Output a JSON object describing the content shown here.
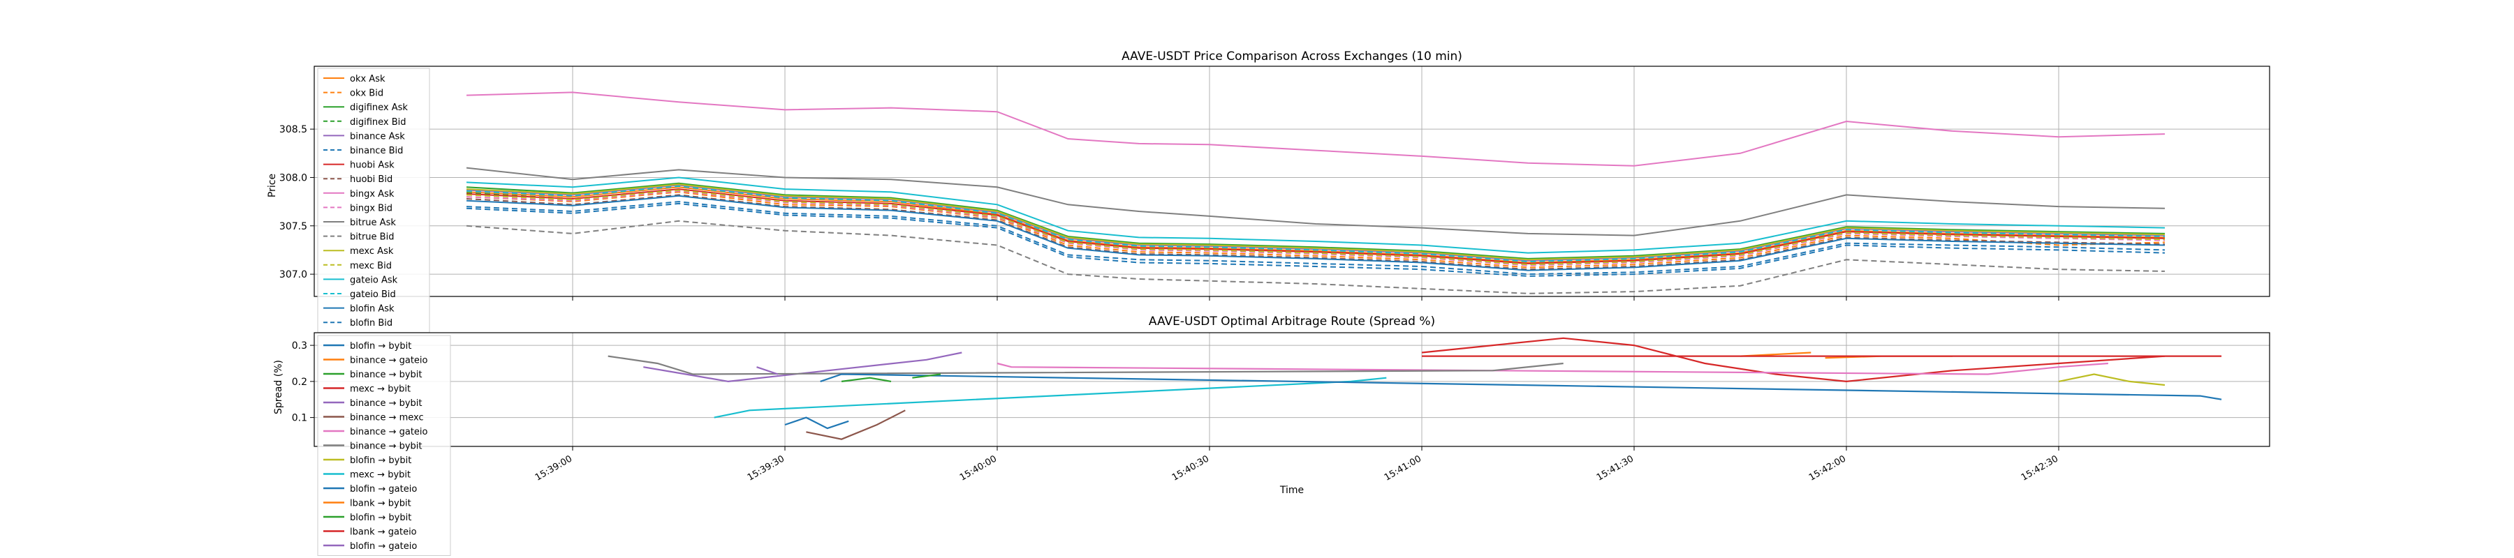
{
  "chart_data": [
    {
      "type": "line",
      "title": "AAVE-USDT Price Comparison Across Exchanges (10 min)",
      "ylabel": "Price",
      "xlabel": "",
      "ylim": [
        306.77,
        309.15
      ],
      "grid": true,
      "legend_placement": "upper-left",
      "x_ticks": [
        "15:39:00",
        "15:39:30",
        "15:40:00",
        "15:40:30",
        "15:41:00",
        "15:41:30",
        "15:42:00",
        "15:42:30"
      ],
      "y_ticks": [
        307.0,
        307.5,
        308.0,
        308.5
      ],
      "x_keys": [
        "15:38:45",
        "15:39:00",
        "15:39:15",
        "15:39:30",
        "15:39:45",
        "15:40:00",
        "15:40:10",
        "15:40:20",
        "15:40:30",
        "15:40:45",
        "15:41:00",
        "15:41:15",
        "15:41:30",
        "15:41:45",
        "15:42:00",
        "15:42:15",
        "15:42:30",
        "15:42:45"
      ],
      "series": [
        {
          "name": "okx Ask",
          "color": "#ff7f0e",
          "dash": "solid",
          "values": [
            307.85,
            307.8,
            307.9,
            307.78,
            307.75,
            307.62,
            307.35,
            307.28,
            307.27,
            307.24,
            307.2,
            307.12,
            307.15,
            307.22,
            307.45,
            307.42,
            307.4,
            307.38
          ]
        },
        {
          "name": "okx Bid",
          "color": "#ff7f0e",
          "dash": "dashed",
          "values": [
            307.8,
            307.75,
            307.85,
            307.72,
            307.7,
            307.58,
            307.3,
            307.23,
            307.22,
            307.19,
            307.15,
            307.07,
            307.1,
            307.17,
            307.4,
            307.37,
            307.3,
            307.33
          ]
        },
        {
          "name": "digifinex Ask",
          "color": "#2ca02c",
          "dash": "solid",
          "values": [
            307.9,
            307.84,
            307.94,
            307.82,
            307.79,
            307.66,
            307.39,
            307.32,
            307.31,
            307.28,
            307.24,
            307.16,
            307.19,
            307.26,
            307.49,
            307.46,
            307.44,
            307.42
          ]
        },
        {
          "name": "digifinex Bid",
          "color": "#2ca02c",
          "dash": "dashed",
          "values": [
            307.84,
            307.78,
            307.88,
            307.76,
            307.73,
            307.6,
            307.33,
            307.26,
            307.25,
            307.22,
            307.18,
            307.1,
            307.13,
            307.2,
            307.43,
            307.4,
            307.38,
            307.36
          ]
        },
        {
          "name": "binance Ask",
          "color": "#9467bd",
          "dash": "solid",
          "values": [
            307.87,
            307.82,
            307.92,
            307.8,
            307.77,
            307.64,
            307.37,
            307.3,
            307.29,
            307.26,
            307.22,
            307.14,
            307.17,
            307.24,
            307.47,
            307.44,
            307.42,
            307.4
          ]
        },
        {
          "name": "binance Bid",
          "color": "#1f77b4",
          "dash": "dashed",
          "values": [
            307.7,
            307.65,
            307.75,
            307.63,
            307.6,
            307.5,
            307.2,
            307.15,
            307.14,
            307.11,
            307.08,
            307.0,
            307.02,
            307.08,
            307.32,
            307.3,
            307.28,
            307.25
          ]
        },
        {
          "name": "huobi Ask",
          "color": "#d62728",
          "dash": "solid",
          "values": [
            307.83,
            307.78,
            307.88,
            307.76,
            307.73,
            307.61,
            307.34,
            307.27,
            307.26,
            307.23,
            307.19,
            307.11,
            307.14,
            307.21,
            307.44,
            307.41,
            307.39,
            307.37
          ]
        },
        {
          "name": "huobi Bid",
          "color": "#8c564b",
          "dash": "dashed",
          "values": [
            307.78,
            307.72,
            307.82,
            307.7,
            307.67,
            307.56,
            307.28,
            307.21,
            307.2,
            307.17,
            307.13,
            307.05,
            307.08,
            307.15,
            307.38,
            307.35,
            307.33,
            307.31
          ]
        },
        {
          "name": "bingx Ask",
          "color": "#e377c2",
          "dash": "solid",
          "values": [
            308.85,
            308.88,
            308.78,
            308.7,
            308.72,
            308.68,
            308.4,
            308.35,
            308.34,
            308.28,
            308.22,
            308.15,
            308.12,
            308.25,
            308.58,
            308.48,
            308.42,
            308.45
          ]
        },
        {
          "name": "bingx Bid",
          "color": "#e377c2",
          "dash": "dashed",
          "values": [
            307.8,
            307.76,
            307.86,
            307.74,
            307.71,
            307.59,
            307.32,
            307.25,
            307.24,
            307.21,
            307.17,
            307.09,
            307.12,
            307.19,
            307.42,
            307.39,
            307.37,
            307.35
          ]
        },
        {
          "name": "bitrue Ask",
          "color": "#7f7f7f",
          "dash": "solid",
          "values": [
            308.1,
            307.98,
            308.08,
            308.0,
            307.98,
            307.9,
            307.72,
            307.65,
            307.6,
            307.52,
            307.48,
            307.42,
            307.4,
            307.55,
            307.82,
            307.75,
            307.7,
            307.68
          ]
        },
        {
          "name": "bitrue Bid",
          "color": "#7f7f7f",
          "dash": "dashed",
          "values": [
            307.5,
            307.42,
            307.55,
            307.45,
            307.4,
            307.3,
            307.0,
            306.95,
            306.93,
            306.9,
            306.85,
            306.8,
            306.82,
            306.88,
            307.15,
            307.1,
            307.05,
            307.03
          ]
        },
        {
          "name": "mexc Ask",
          "color": "#bcbd22",
          "dash": "solid",
          "values": [
            307.88,
            307.83,
            307.93,
            307.81,
            307.78,
            307.65,
            307.38,
            307.31,
            307.3,
            307.27,
            307.23,
            307.15,
            307.18,
            307.25,
            307.48,
            307.45,
            307.43,
            307.41
          ]
        },
        {
          "name": "mexc Bid",
          "color": "#bcbd22",
          "dash": "dashed",
          "values": [
            307.82,
            307.77,
            307.87,
            307.75,
            307.72,
            307.6,
            307.33,
            307.26,
            307.25,
            307.22,
            307.18,
            307.1,
            307.13,
            307.2,
            307.43,
            307.4,
            307.38,
            307.36
          ]
        },
        {
          "name": "gateio Ask",
          "color": "#17becf",
          "dash": "solid",
          "values": [
            307.95,
            307.9,
            308.0,
            307.88,
            307.85,
            307.72,
            307.45,
            307.38,
            307.37,
            307.34,
            307.3,
            307.22,
            307.25,
            307.32,
            307.55,
            307.52,
            307.5,
            307.48
          ]
        },
        {
          "name": "gateio Bid",
          "color": "#17becf",
          "dash": "dashed",
          "values": [
            307.86,
            307.81,
            307.91,
            307.79,
            307.76,
            307.63,
            307.36,
            307.29,
            307.28,
            307.25,
            307.21,
            307.13,
            307.16,
            307.23,
            307.46,
            307.43,
            307.41,
            307.39
          ]
        },
        {
          "name": "blofin Ask",
          "color": "#1f77b4",
          "dash": "solid",
          "values": [
            307.76,
            307.71,
            307.81,
            307.69,
            307.66,
            307.55,
            307.27,
            307.2,
            307.19,
            307.16,
            307.12,
            307.04,
            307.07,
            307.14,
            307.37,
            307.34,
            307.32,
            307.3
          ]
        },
        {
          "name": "blofin Bid",
          "color": "#1f77b4",
          "dash": "dashed",
          "values": [
            307.68,
            307.63,
            307.73,
            307.61,
            307.58,
            307.48,
            307.18,
            307.12,
            307.11,
            307.08,
            307.05,
            306.98,
            307.0,
            307.06,
            307.3,
            307.27,
            307.25,
            307.22
          ]
        }
      ]
    },
    {
      "type": "line",
      "title": "AAVE-USDT Optimal Arbitrage Route (Spread %)",
      "xlabel": "Time",
      "ylabel": "Spread (%)",
      "ylim": [
        0.02,
        0.335
      ],
      "grid": true,
      "legend_placement": "upper-left",
      "x_ticks": [
        "15:39:00",
        "15:39:30",
        "15:40:00",
        "15:40:30",
        "15:41:00",
        "15:41:30",
        "15:42:00",
        "15:42:30"
      ],
      "y_ticks": [
        0.1,
        0.2,
        0.3
      ],
      "x_range": [
        "15:38:45",
        "15:42:53"
      ],
      "series": [
        {
          "name": "blofin → bybit",
          "color": "#1f77b4",
          "points": [
            [
              "15:39:30",
              0.08
            ],
            [
              "15:39:33",
              0.1
            ],
            [
              "15:39:36",
              0.07
            ],
            [
              "15:39:39",
              0.09
            ]
          ]
        },
        {
          "name": "binance → gateio",
          "color": "#ff7f0e",
          "points": [
            [
              "15:41:57",
              0.265
            ],
            [
              "15:42:05",
              0.27
            ],
            [
              "15:42:15",
              0.27
            ]
          ]
        },
        {
          "name": "binance → bybit",
          "color": "#2ca02c",
          "points": [
            [
              "15:39:38",
              0.2
            ],
            [
              "15:39:42",
              0.21
            ],
            [
              "15:39:45",
              0.2
            ]
          ]
        },
        {
          "name": "mexc → bybit",
          "color": "#d62728",
          "points": [
            [
              "15:41:00",
              0.28
            ],
            [
              "15:41:10",
              0.3
            ],
            [
              "15:41:20",
              0.32
            ],
            [
              "15:41:30",
              0.3
            ],
            [
              "15:41:40",
              0.25
            ],
            [
              "15:41:50",
              0.22
            ],
            [
              "15:42:00",
              0.2
            ],
            [
              "15:42:15",
              0.23
            ],
            [
              "15:42:30",
              0.25
            ],
            [
              "15:42:45",
              0.27
            ]
          ]
        },
        {
          "name": "binance → bybit",
          "color": "#9467bd",
          "points": [
            [
              "15:39:10",
              0.24
            ],
            [
              "15:39:16",
              0.22
            ],
            [
              "15:39:22",
              0.2
            ],
            [
              "15:39:50",
              0.26
            ],
            [
              "15:39:55",
              0.28
            ]
          ]
        },
        {
          "name": "binance → mexc",
          "color": "#8c564b",
          "points": [
            [
              "15:39:33",
              0.06
            ],
            [
              "15:39:38",
              0.04
            ],
            [
              "15:39:43",
              0.08
            ],
            [
              "15:39:47",
              0.12
            ]
          ]
        },
        {
          "name": "binance → gateio",
          "color": "#e377c2",
          "points": [
            [
              "15:40:00",
              0.25
            ],
            [
              "15:40:02",
              0.24
            ],
            [
              "15:42:20",
              0.22
            ],
            [
              "15:42:30",
              0.24
            ],
            [
              "15:42:37",
              0.25
            ]
          ]
        },
        {
          "name": "binance → bybit",
          "color": "#7f7f7f",
          "points": [
            [
              "15:39:05",
              0.27
            ],
            [
              "15:39:12",
              0.25
            ],
            [
              "15:39:17",
              0.22
            ],
            [
              "15:41:10",
              0.23
            ],
            [
              "15:41:20",
              0.25
            ]
          ]
        },
        {
          "name": "blofin → bybit",
          "color": "#bcbd22",
          "points": [
            [
              "15:42:30",
              0.2
            ],
            [
              "15:42:35",
              0.22
            ],
            [
              "15:42:40",
              0.2
            ],
            [
              "15:42:45",
              0.19
            ]
          ]
        },
        {
          "name": "mexc → bybit",
          "color": "#17becf",
          "points": [
            [
              "15:39:20",
              0.1
            ],
            [
              "15:39:25",
              0.12
            ],
            [
              "15:40:50",
              0.2
            ],
            [
              "15:40:55",
              0.21
            ]
          ]
        },
        {
          "name": "blofin → gateio",
          "color": "#1f77b4",
          "points": [
            [
              "15:39:35",
              0.2
            ],
            [
              "15:39:38",
              0.22
            ],
            [
              "15:42:50",
              0.16
            ],
            [
              "15:42:53",
              0.15
            ]
          ]
        },
        {
          "name": "lbank → bybit",
          "color": "#ff7f0e",
          "points": [
            [
              "15:41:45",
              0.27
            ],
            [
              "15:41:55",
              0.28
            ]
          ]
        },
        {
          "name": "blofin → bybit",
          "color": "#2ca02c",
          "points": [
            [
              "15:39:48",
              0.21
            ],
            [
              "15:39:52",
              0.22
            ]
          ]
        },
        {
          "name": "lbank → gateio",
          "color": "#d62728",
          "points": [
            [
              "15:41:00",
              0.27
            ],
            [
              "15:42:53",
              0.27
            ]
          ]
        },
        {
          "name": "blofin → gateio",
          "color": "#9467bd",
          "points": [
            [
              "15:39:26",
              0.24
            ],
            [
              "15:39:29",
              0.22
            ]
          ]
        }
      ]
    }
  ]
}
